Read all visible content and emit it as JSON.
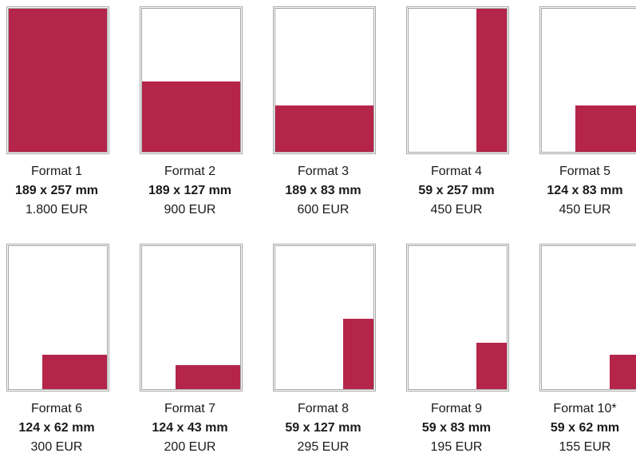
{
  "accent_color": "#b5254a",
  "frame_color": "#a6a6a6",
  "formats": [
    {
      "title": "Format 1",
      "size": "189 x 257 mm",
      "price": "1.800 EUR",
      "fill_width_fraction": 1.0,
      "fill_height_fraction": 1.0
    },
    {
      "title": "Format 2",
      "size": "189 x 127 mm",
      "price": "900 EUR",
      "fill_width_fraction": 1.0,
      "fill_height_fraction": 0.494
    },
    {
      "title": "Format 3",
      "size": "189 x 83 mm",
      "price": "600 EUR",
      "fill_width_fraction": 1.0,
      "fill_height_fraction": 0.323
    },
    {
      "title": "Format 4",
      "size": "59 x 257 mm",
      "price": "450 EUR",
      "fill_width_fraction": 0.312,
      "fill_height_fraction": 1.0
    },
    {
      "title": "Format 5",
      "size": "124 x 83 mm",
      "price": "450 EUR",
      "fill_width_fraction": 0.656,
      "fill_height_fraction": 0.323
    },
    {
      "title": "Format 6",
      "size": "124 x 62 mm",
      "price": "300 EUR",
      "fill_width_fraction": 0.656,
      "fill_height_fraction": 0.241
    },
    {
      "title": "Format 7",
      "size": "124 x 43 mm",
      "price": "200 EUR",
      "fill_width_fraction": 0.656,
      "fill_height_fraction": 0.167
    },
    {
      "title": "Format 8",
      "size": "59 x 127 mm",
      "price": "295 EUR",
      "fill_width_fraction": 0.312,
      "fill_height_fraction": 0.494
    },
    {
      "title": "Format 9",
      "size": "59 x 83 mm",
      "price": "195 EUR",
      "fill_width_fraction": 0.312,
      "fill_height_fraction": 0.323
    },
    {
      "title": "Format 10*",
      "size": "59 x 62 mm",
      "price": "155 EUR",
      "fill_width_fraction": 0.312,
      "fill_height_fraction": 0.241
    }
  ]
}
